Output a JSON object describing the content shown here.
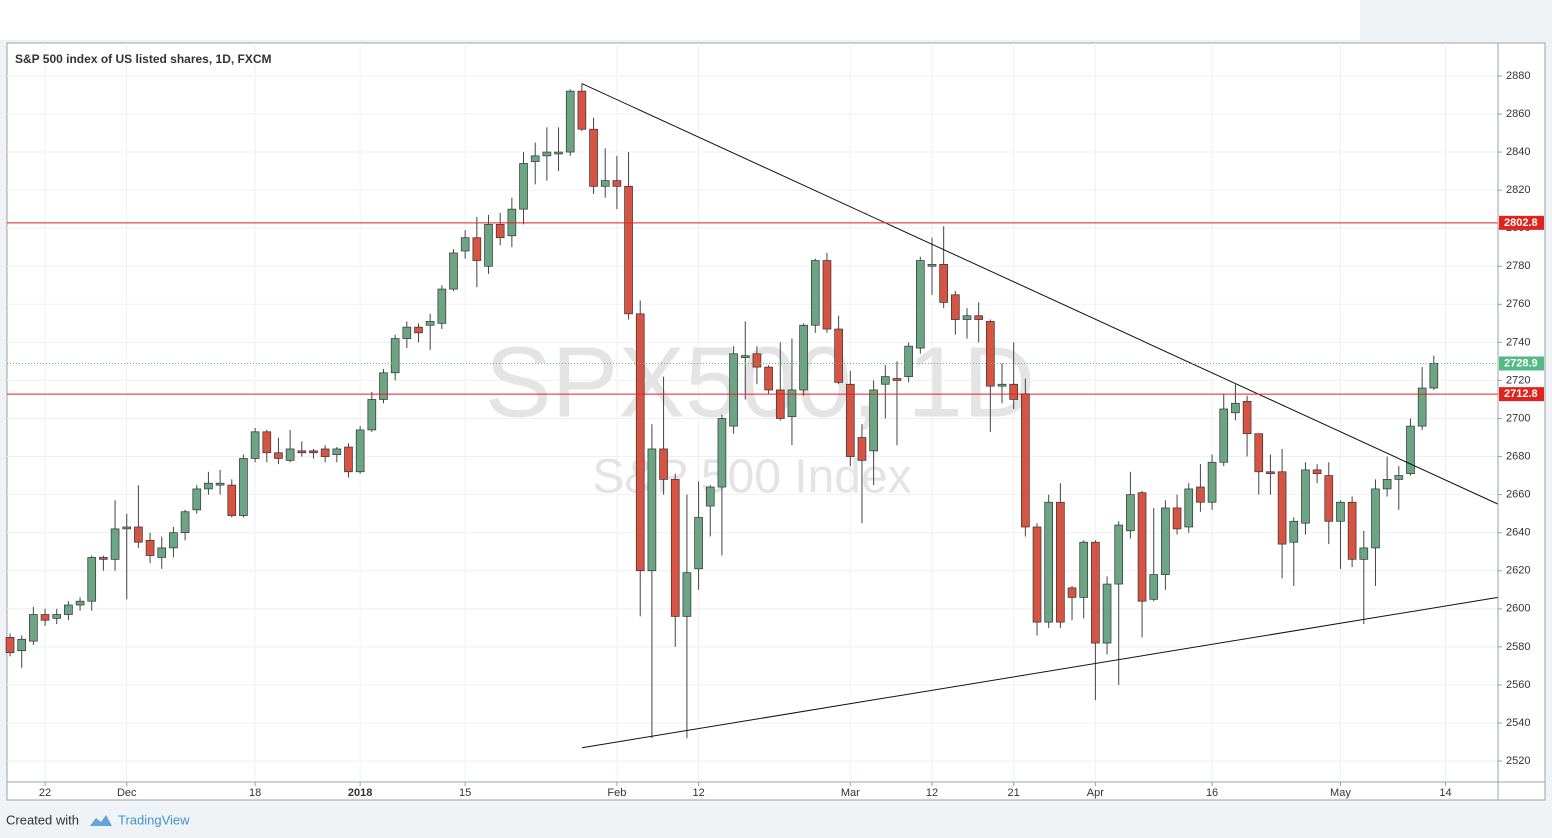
{
  "chart_data": {
    "type": "candlestick",
    "title": "S&P 500 index of US listed shares, 1D, FXCM",
    "watermark": "SPX500, 1D",
    "watermark_subtitle": "S&P 500 Index",
    "footer": {
      "created": "Created with",
      "brand": "TradingView"
    },
    "up_color": "#6ba583",
    "down_color": "#d75442",
    "grid": true,
    "xlim": [
      -0.26,
      127.5
    ],
    "ylim": [
      2509,
      2897.3
    ],
    "yticks": [
      2520,
      2540,
      2560,
      2580,
      2600,
      2620,
      2640,
      2660,
      2680,
      2700,
      2720,
      2740,
      2760,
      2780,
      2800,
      2820,
      2840,
      2860,
      2880
    ],
    "xticks": [
      {
        "value": 3,
        "label": "22"
      },
      {
        "value": 10,
        "label": "Dec"
      },
      {
        "value": 21,
        "label": "18"
      },
      {
        "value": 30,
        "label": "2018"
      },
      {
        "value": 39,
        "label": "15"
      },
      {
        "value": 52,
        "label": "Feb"
      },
      {
        "value": 59,
        "label": "12"
      },
      {
        "value": 72,
        "label": "Mar"
      },
      {
        "value": 79,
        "label": "12"
      },
      {
        "value": 86,
        "label": "21"
      },
      {
        "value": 93,
        "label": "Apr"
      },
      {
        "value": 103,
        "label": "16"
      },
      {
        "value": 114,
        "label": "May"
      },
      {
        "value": 123,
        "label": "14"
      }
    ],
    "open": [
      2585,
      2578,
      2583,
      2597,
      2595,
      2597,
      2602,
      2604,
      2627,
      2626,
      2642,
      2643,
      2636,
      2627,
      2632,
      2640,
      2652,
      2663,
      2665,
      2665,
      2649,
      2679,
      2693,
      2682,
      2678,
      2683,
      2683,
      2684,
      2681,
      2685,
      2672,
      2694,
      2710,
      2724,
      2742,
      2748,
      2749,
      2750,
      2768,
      2788,
      2795,
      2780,
      2802,
      2796,
      2810,
      2835,
      2838,
      2839,
      2840,
      2872,
      2852,
      2822,
      2825,
      2822,
      2755,
      2620,
      2684,
      2668,
      2596,
      2621,
      2654,
      2664,
      2696,
      2732,
      2734,
      2727,
      2715,
      2701,
      2715,
      2749,
      2783,
      2747,
      2718,
      2690,
      2683,
      2718,
      2721,
      2722,
      2737,
      2780,
      2781,
      2765,
      2752,
      2754,
      2751,
      2717,
      2718,
      2713,
      2643,
      2593,
      2656,
      2611,
      2606,
      2635,
      2582,
      2613,
      2641,
      2661,
      2605,
      2618,
      2653,
      2643,
      2664,
      2656,
      2677,
      2703,
      2709,
      2692,
      2672,
      2672,
      2635,
      2645,
      2673,
      2670,
      2646,
      2656,
      2626,
      2632,
      2663,
      2668,
      2671,
      2696,
      2716
    ],
    "high": [
      2587,
      2586,
      2601,
      2600,
      2600,
      2604,
      2606,
      2628,
      2628,
      2657,
      2650,
      2665,
      2640,
      2638,
      2643,
      2652,
      2665,
      2672,
      2673,
      2668,
      2681,
      2695,
      2694,
      2690,
      2694,
      2688,
      2684,
      2686,
      2685,
      2687,
      2696,
      2714,
      2726,
      2744,
      2751,
      2750,
      2755,
      2770,
      2789,
      2799,
      2806,
      2807,
      2808,
      2816,
      2840,
      2845,
      2853,
      2853,
      2873,
      2876,
      2858,
      2842,
      2838,
      2840,
      2762,
      2697,
      2722,
      2671,
      2660,
      2667,
      2665,
      2702,
      2738,
      2751,
      2738,
      2728,
      2740,
      2742,
      2750,
      2784,
      2787,
      2754,
      2725,
      2697,
      2720,
      2728,
      2730,
      2740,
      2785,
      2795,
      2801,
      2767,
      2758,
      2761,
      2752,
      2729,
      2740,
      2721,
      2645,
      2660,
      2666,
      2612,
      2636,
      2636,
      2617,
      2646,
      2672,
      2662,
      2653,
      2657,
      2660,
      2666,
      2676,
      2681,
      2713,
      2718,
      2712,
      2692,
      2681,
      2684,
      2648,
      2677,
      2676,
      2677,
      2657,
      2659,
      2641,
      2668,
      2680,
      2675,
      2700,
      2727,
      2733
    ],
    "low": [
      2575,
      2569,
      2581,
      2591,
      2592,
      2594,
      2599,
      2599,
      2620,
      2620,
      2605,
      2632,
      2624,
      2621,
      2627,
      2636,
      2650,
      2660,
      2660,
      2648,
      2648,
      2677,
      2677,
      2676,
      2677,
      2680,
      2679,
      2677,
      2677,
      2669,
      2671,
      2693,
      2708,
      2720,
      2737,
      2740,
      2736,
      2747,
      2767,
      2784,
      2769,
      2776,
      2791,
      2790,
      2802,
      2823,
      2825,
      2830,
      2838,
      2851,
      2818,
      2816,
      2810,
      2752,
      2596,
      2532,
      2660,
      2580,
      2532,
      2610,
      2638,
      2628,
      2692,
      2710,
      2718,
      2713,
      2699,
      2686,
      2712,
      2745,
      2745,
      2718,
      2675,
      2645,
      2665,
      2700,
      2686,
      2719,
      2734,
      2765,
      2758,
      2744,
      2742,
      2740,
      2693,
      2708,
      2705,
      2638,
      2586,
      2590,
      2590,
      2594,
      2595,
      2552,
      2576,
      2560,
      2637,
      2585,
      2604,
      2610,
      2639,
      2640,
      2651,
      2652,
      2675,
      2699,
      2680,
      2660,
      2660,
      2616,
      2612,
      2639,
      2666,
      2634,
      2621,
      2622,
      2592,
      2612,
      2659,
      2652,
      2670,
      2694,
      2715
    ],
    "close": [
      2577,
      2584,
      2597,
      2594,
      2597,
      2602,
      2604,
      2627,
      2626,
      2642,
      2643,
      2635,
      2628,
      2632,
      2640,
      2651,
      2663,
      2666,
      2666,
      2649,
      2679,
      2693,
      2682,
      2679,
      2684,
      2682,
      2682,
      2680,
      2684,
      2672,
      2694,
      2710,
      2724,
      2742,
      2748,
      2745,
      2751,
      2768,
      2787,
      2795,
      2783,
      2802,
      2795,
      2810,
      2834,
      2838,
      2840,
      2840,
      2872,
      2852,
      2822,
      2825,
      2822,
      2755,
      2620,
      2684,
      2668,
      2596,
      2619,
      2648,
      2664,
      2700,
      2734,
      2733,
      2727,
      2715,
      2700,
      2715,
      2749,
      2783,
      2747,
      2719,
      2680,
      2678,
      2715,
      2722,
      2720,
      2738,
      2783,
      2781,
      2761,
      2752,
      2754,
      2752,
      2717,
      2718,
      2710,
      2643,
      2593,
      2656,
      2593,
      2606,
      2635,
      2582,
      2613,
      2644,
      2660,
      2604,
      2618,
      2653,
      2642,
      2663,
      2656,
      2677,
      2705,
      2708,
      2692,
      2672,
      2671,
      2634,
      2646,
      2673,
      2671,
      2646,
      2656,
      2626,
      2632,
      2663,
      2668,
      2670,
      2696,
      2716,
      2729
    ],
    "hlines": [
      {
        "value": 2802.8,
        "color": "#e0231c"
      },
      {
        "value": 2712.8,
        "color": "#e0231c"
      }
    ],
    "last_price": {
      "value": 2728.9,
      "color": "#53b987"
    },
    "trendlines": [
      {
        "x": [
          49,
          127.5
        ],
        "y": [
          2876,
          2655
        ]
      },
      {
        "x": [
          49,
          127.5
        ],
        "y": [
          2527,
          2606
        ]
      }
    ]
  }
}
